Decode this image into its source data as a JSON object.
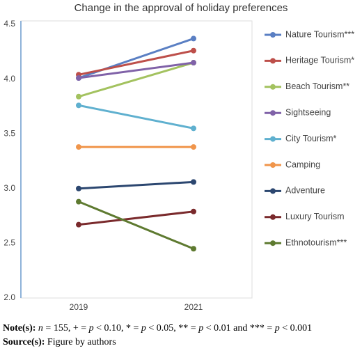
{
  "chart_data": {
    "type": "line",
    "title": "Change in the approval of holiday preferences",
    "categories": [
      "2019",
      "2021"
    ],
    "ylim": [
      2.0,
      4.5
    ],
    "yticks": [
      {
        "value": 2,
        "label": "2.0"
      },
      2.5,
      {
        "value": 3,
        "label": "3.0"
      },
      3.5,
      {
        "value": 4,
        "label": "4.0"
      },
      4.5
    ],
    "series": [
      {
        "name": "Nature Tourism***",
        "color": "#5a7fc3",
        "values": [
          4.01,
          4.37
        ]
      },
      {
        "name": "Heritage Tourism*",
        "color": "#bd4f4a",
        "values": [
          4.04,
          4.26
        ]
      },
      {
        "name": "Beach Tourism**",
        "color": "#a3c25f",
        "values": [
          3.84,
          4.15
        ]
      },
      {
        "name": "Sightseeing",
        "color": "#8062a8",
        "values": [
          4.01,
          4.15
        ]
      },
      {
        "name": "City Tourism*",
        "color": "#5fb0cf",
        "values": [
          3.76,
          3.55
        ]
      },
      {
        "name": "Camping",
        "color": "#f0954b",
        "values": [
          3.38,
          3.38
        ]
      },
      {
        "name": "Adventure",
        "color": "#2c4770",
        "values": [
          3.0,
          3.06
        ]
      },
      {
        "name": "Luxury Tourism",
        "color": "#7a2a2c",
        "values": [
          2.67,
          2.79
        ]
      },
      {
        "name": "Ethnotourism***",
        "color": "#5e7a30",
        "values": [
          2.88,
          2.45
        ]
      }
    ]
  },
  "notes": {
    "label": "Note(s):",
    "segments": [
      "n",
      " = 155, + = ",
      "p",
      " < 0.10, * = ",
      "p",
      " < 0.05, ** = ",
      "p",
      " < 0.01 and *** = ",
      "p",
      " < 0.001"
    ]
  },
  "source": {
    "label": "Source(s):",
    "text": "Figure by authors"
  }
}
